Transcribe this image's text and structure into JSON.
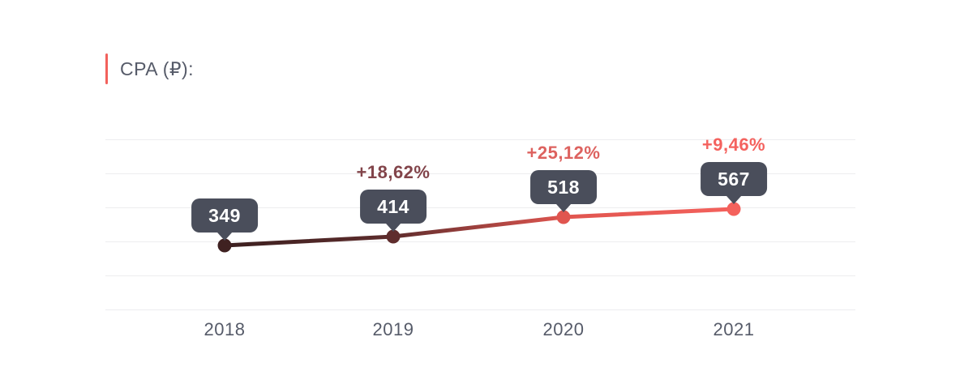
{
  "title": "CPA (₽):",
  "chart_data": {
    "type": "line",
    "title": "CPA (₽):",
    "categories": [
      "2018",
      "2019",
      "2020",
      "2021"
    ],
    "series": [
      {
        "name": "CPA",
        "values": [
          349,
          414,
          518,
          567
        ]
      }
    ],
    "point_labels": [
      "349",
      "414",
      "518",
      "567"
    ],
    "pct_changes": [
      "",
      "+18,62%",
      "+25,12%",
      "+9,46%"
    ],
    "xlabel": "",
    "ylabel": "",
    "legend": "none",
    "grid": "horizontal-only",
    "gridline_count": 6
  },
  "colors": {
    "accent": "#f2615c",
    "tooltip_bg": "#4a4e5b",
    "tooltip_text": "#ffffff",
    "grid_line": "#ededef",
    "axis_text": "#565b69",
    "title_text": "#565b69",
    "point_colors": [
      "#3f2121",
      "#5f2d2d",
      "#e0554f",
      "#f4615c"
    ],
    "pct_colors": [
      "",
      "#82444a",
      "#dd625f",
      "#f4625e"
    ],
    "line_gradient": [
      "#3b1f1f",
      "#5f2d2d",
      "#e0554f",
      "#f4615c"
    ]
  }
}
